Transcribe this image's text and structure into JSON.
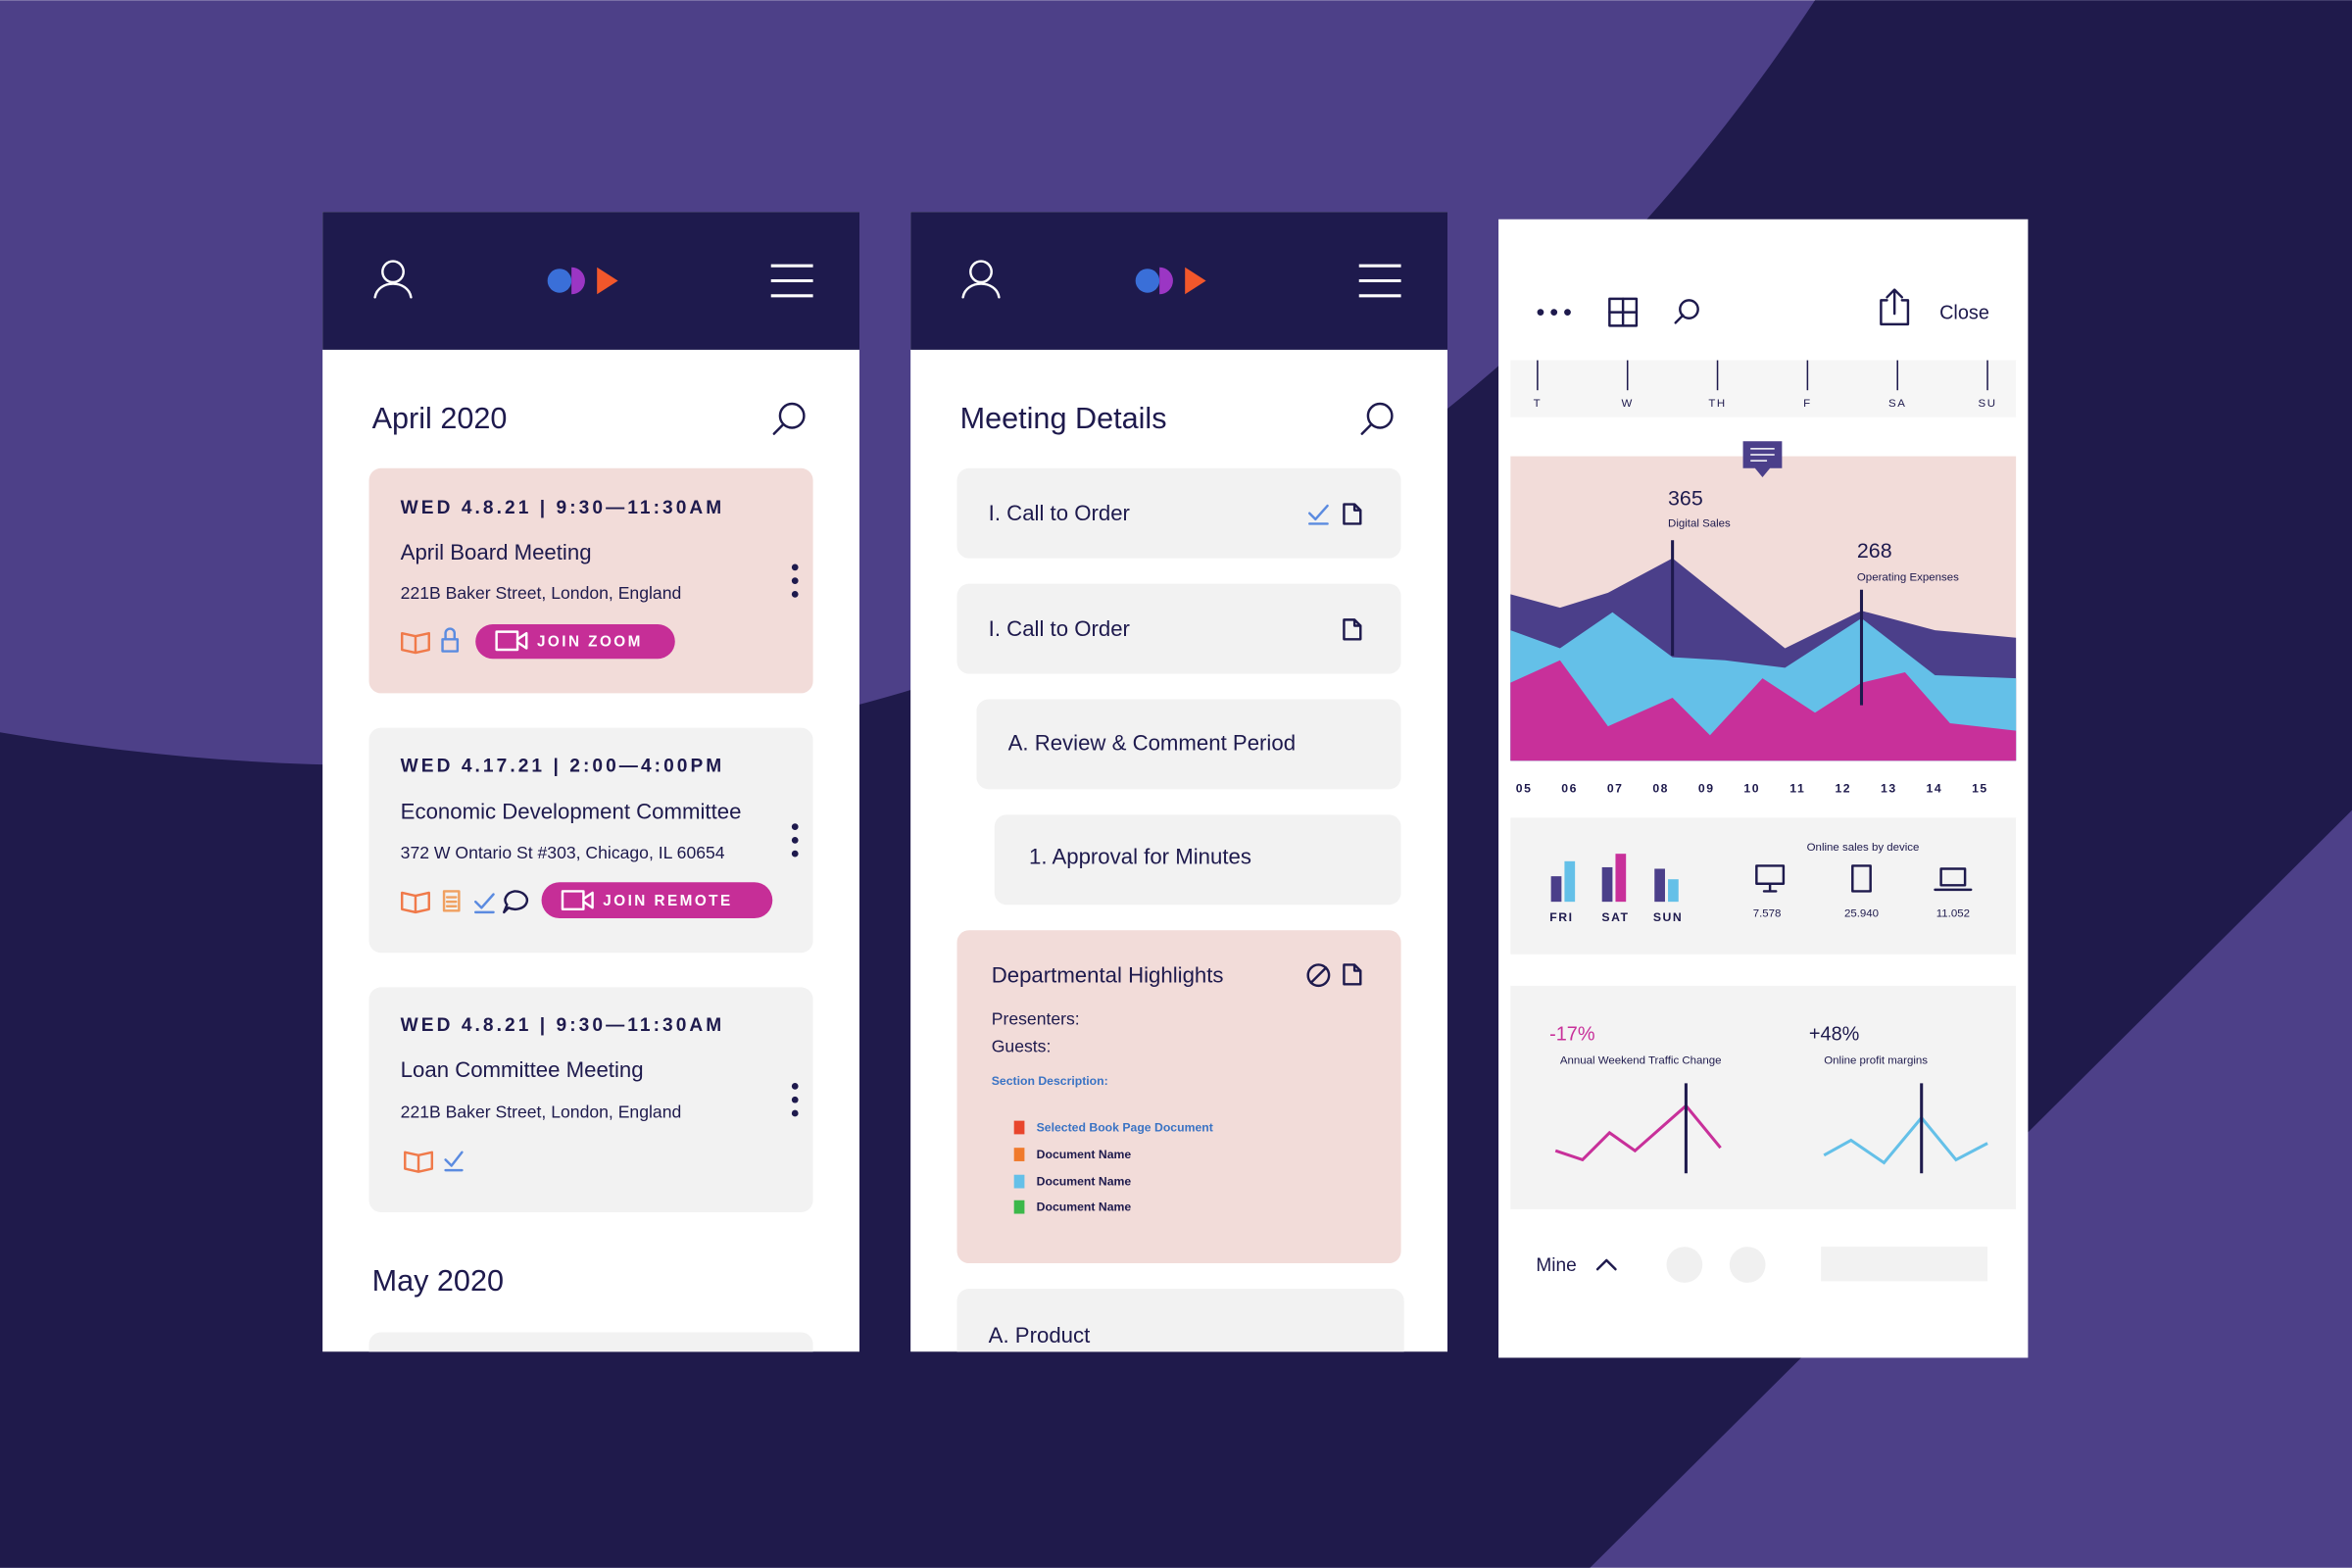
{
  "calendar": {
    "months": [
      "April 2020",
      "May 2020"
    ],
    "events": [
      {
        "date": "WED  4.8.21  |  9:30—11:30AM",
        "title": "April Board Meeting",
        "address": "221B Baker Street, London, England",
        "button": "JOIN ZOOM"
      },
      {
        "date": "WED  4.17.21  |  2:00—4:00PM",
        "title": "Economic Development Committee",
        "address": "372 W Ontario St #303, Chicago, IL 60654",
        "button": "JOIN REMOTE"
      },
      {
        "date": "WED  4.8.21  |  9:30—11:30AM",
        "title": "Loan Committee Meeting",
        "address": "221B Baker Street, London, England"
      }
    ]
  },
  "meeting": {
    "title": "Meeting Details",
    "items": [
      "I. Call to Order",
      "I. Call to Order",
      "A. Review & Comment Period",
      "1. Approval for Minutes"
    ],
    "highlight": {
      "title": "Departmental Highlights",
      "presenters": "Presenters:",
      "guests": "Guests:",
      "section": "Section Description:",
      "documents": [
        "Selected Book Page Document",
        "Document Name",
        "Document Name",
        "Document Name"
      ]
    },
    "last_item": "A. Product"
  },
  "dashboard": {
    "close": "Close",
    "days": [
      "T",
      "W",
      "TH",
      "F",
      "SA",
      "SU"
    ],
    "callouts": [
      {
        "value": "365",
        "label": "Digital Sales"
      },
      {
        "value": "268",
        "label": "Operating Expenses"
      }
    ],
    "hours": [
      "05",
      "06",
      "07",
      "08",
      "09",
      "10",
      "11",
      "12",
      "13",
      "14",
      "15"
    ],
    "bar_days": [
      "FRI",
      "SAT",
      "SUN"
    ],
    "devices": {
      "title": "Online sales by device",
      "values": [
        "7.578",
        "25.940",
        "11.052"
      ]
    },
    "kpis": [
      {
        "value": "-17%",
        "label": "Annual Weekend Traffic Change"
      },
      {
        "value": "+48%",
        "label": "Online profit margins"
      }
    ],
    "footer": "Mine"
  }
}
